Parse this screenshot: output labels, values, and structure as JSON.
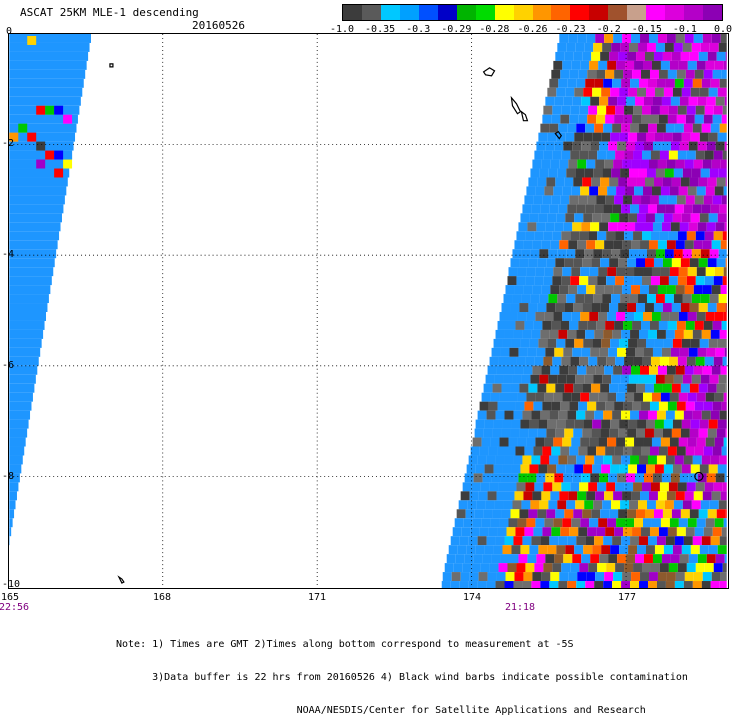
{
  "header": {
    "title": "ASCAT 25KM MLE-1 descending",
    "date": "20160526"
  },
  "colorbar": {
    "colors": [
      "#3c3c3c",
      "#5a5a5a",
      "#00c8ff",
      "#00a0ff",
      "#0050ff",
      "#0000c8",
      "#00b400",
      "#00dc00",
      "#ffff00",
      "#ffd200",
      "#ff9600",
      "#ff6400",
      "#ff0000",
      "#c80000",
      "#a0522d",
      "#c8a08c",
      "#ff00ff",
      "#dc00dc",
      "#b400c8",
      "#8c00b4"
    ],
    "labels": [
      "-1.0",
      "-0.35",
      "-0.3",
      "-0.29",
      "-0.28",
      "-0.26",
      "-0.23",
      "-0.2",
      "-0.15",
      "-0.1",
      "0.0"
    ]
  },
  "map": {
    "lat_labels": [
      "0",
      "-2",
      "-4",
      "-6",
      "-8",
      "-10"
    ],
    "lon_labels": [
      "165",
      "168",
      "171",
      "174",
      "177"
    ],
    "time_labels": [
      "22:56",
      "21:18"
    ]
  },
  "notes": {
    "line1": "Note: 1) Times are GMT 2)Times along bottom correspond to measurement at -5S",
    "line2": "      3)Data buffer is 22 hrs from 20160526 4) Black wind barbs indicate possible contamination",
    "line3": "                              NOAA/NESDIS/Center for Satellite Applications and Research"
  }
}
